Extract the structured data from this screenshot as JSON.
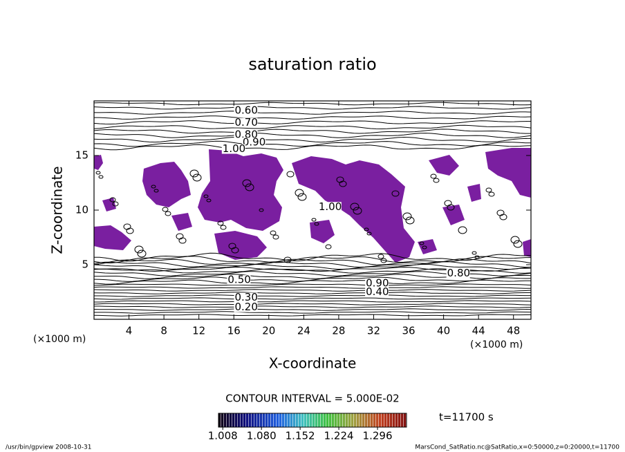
{
  "chart_data": {
    "type": "contour",
    "title": "saturation ratio",
    "xlabel": "X-coordinate",
    "ylabel": "Z-coordinate",
    "x_unit": "(×1000 m)",
    "y_unit": "(×1000 m)",
    "xlim": [
      0,
      50
    ],
    "ylim": [
      0,
      20
    ],
    "xticks": [
      4,
      8,
      12,
      16,
      20,
      24,
      28,
      32,
      36,
      40,
      44,
      48
    ],
    "yticks": [
      5,
      10,
      15
    ],
    "fill_color": "#7a1fa0",
    "contour_labels": [
      {
        "text": "0.60",
        "x": 16.1,
        "z": 19.1
      },
      {
        "text": "0.70",
        "x": 16.1,
        "z": 18.0
      },
      {
        "text": "0.80",
        "x": 16.1,
        "z": 16.9
      },
      {
        "text": "0.90",
        "x": 17.0,
        "z": 16.2
      },
      {
        "text": "1.00",
        "x": 14.7,
        "z": 15.6
      },
      {
        "text": "1.00",
        "x": 25.7,
        "z": 10.3
      },
      {
        "text": "0.50",
        "x": 15.3,
        "z": 3.6
      },
      {
        "text": "0.30",
        "x": 16.1,
        "z": 2.0
      },
      {
        "text": "0.20",
        "x": 16.1,
        "z": 1.1
      },
      {
        "text": "0.90",
        "x": 31.1,
        "z": 3.3
      },
      {
        "text": "0.40",
        "x": 31.1,
        "z": 2.5
      },
      {
        "text": "0.80",
        "x": 40.4,
        "z": 4.2
      }
    ],
    "contour_interval": "CONTOUR INTERVAL = 5.000E-02",
    "time_label": "t=11700 s",
    "colorbar": {
      "lim": [
        1.0,
        1.35
      ],
      "ticks": [
        {
          "value": 1.008,
          "label": "1.008"
        },
        {
          "value": 1.08,
          "label": "1.080"
        },
        {
          "value": 1.152,
          "label": "1.152"
        },
        {
          "value": 1.224,
          "label": "1.224"
        },
        {
          "value": 1.296,
          "label": "1.296"
        }
      ]
    },
    "footer_left": "/usr/bin/gpview   2008-10-31",
    "footer_right": "MarsCond_SatRatio.nc@SatRatio,x=0:50000,z=0:20000,t=11700"
  }
}
